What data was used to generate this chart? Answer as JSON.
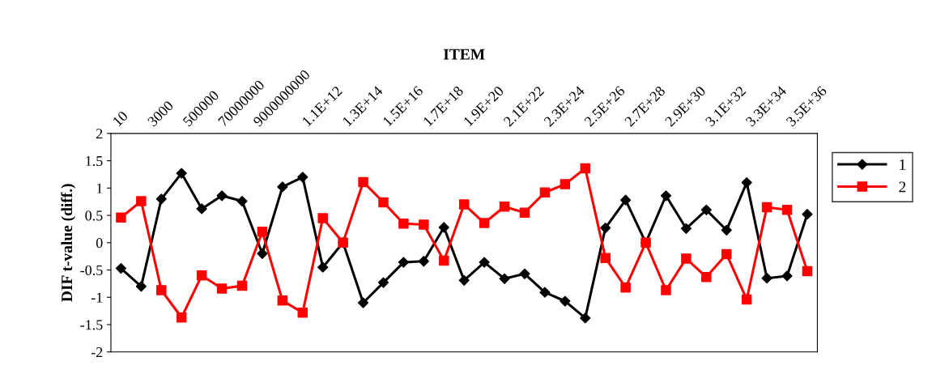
{
  "chart_data": {
    "type": "line",
    "xlabel": "ITEM",
    "ylabel": "DIF t-value (diff.)",
    "categories": [
      "10",
      null,
      "3000",
      null,
      "500000",
      null,
      "70000000",
      null,
      "9000000000",
      null,
      "1.1E+12",
      null,
      "1.3E+14",
      null,
      "1.5E+16",
      null,
      "1.7E+18",
      null,
      "1.9E+20",
      null,
      "2.1E+22",
      null,
      "2.3E+24",
      null,
      "2.5E+26",
      null,
      "2.7E+28",
      null,
      "2.9E+30",
      null,
      "3.1E+32",
      null,
      "3.3E+34",
      null,
      "3.5E+36"
    ],
    "series": [
      {
        "name": "1",
        "color": "#000000",
        "marker": "diamond",
        "values": [
          -0.47,
          -0.8,
          0.8,
          1.27,
          0.62,
          0.86,
          0.76,
          -0.2,
          1.02,
          1.2,
          -0.45,
          0,
          -1.1,
          -0.73,
          -0.36,
          -0.34,
          0.28,
          -0.69,
          -0.36,
          -0.66,
          -0.57,
          -0.91,
          -1.07,
          -1.38,
          0.27,
          0.78,
          0,
          0.86,
          0.26,
          0.6,
          0.23,
          1.1,
          -0.65,
          -0.61,
          0.52
        ]
      },
      {
        "name": "2",
        "color": "#ff0000",
        "marker": "square",
        "values": [
          0.46,
          0.76,
          -0.87,
          -1.37,
          -0.6,
          -0.84,
          -0.79,
          0.2,
          -1.06,
          -1.28,
          0.45,
          0,
          1.11,
          0.74,
          0.35,
          0.33,
          -0.33,
          0.7,
          0.36,
          0.66,
          0.55,
          0.92,
          1.07,
          1.36,
          -0.28,
          -0.82,
          0,
          -0.87,
          -0.29,
          -0.63,
          -0.21,
          -1.04,
          0.65,
          0.6,
          -0.52
        ]
      }
    ],
    "ylim": [
      -2,
      2
    ],
    "yticks": [
      -2,
      -1.5,
      -1,
      -0.5,
      0,
      0.5,
      1,
      1.5,
      2
    ],
    "grid": false,
    "legend": "right",
    "line_style": "solid"
  }
}
